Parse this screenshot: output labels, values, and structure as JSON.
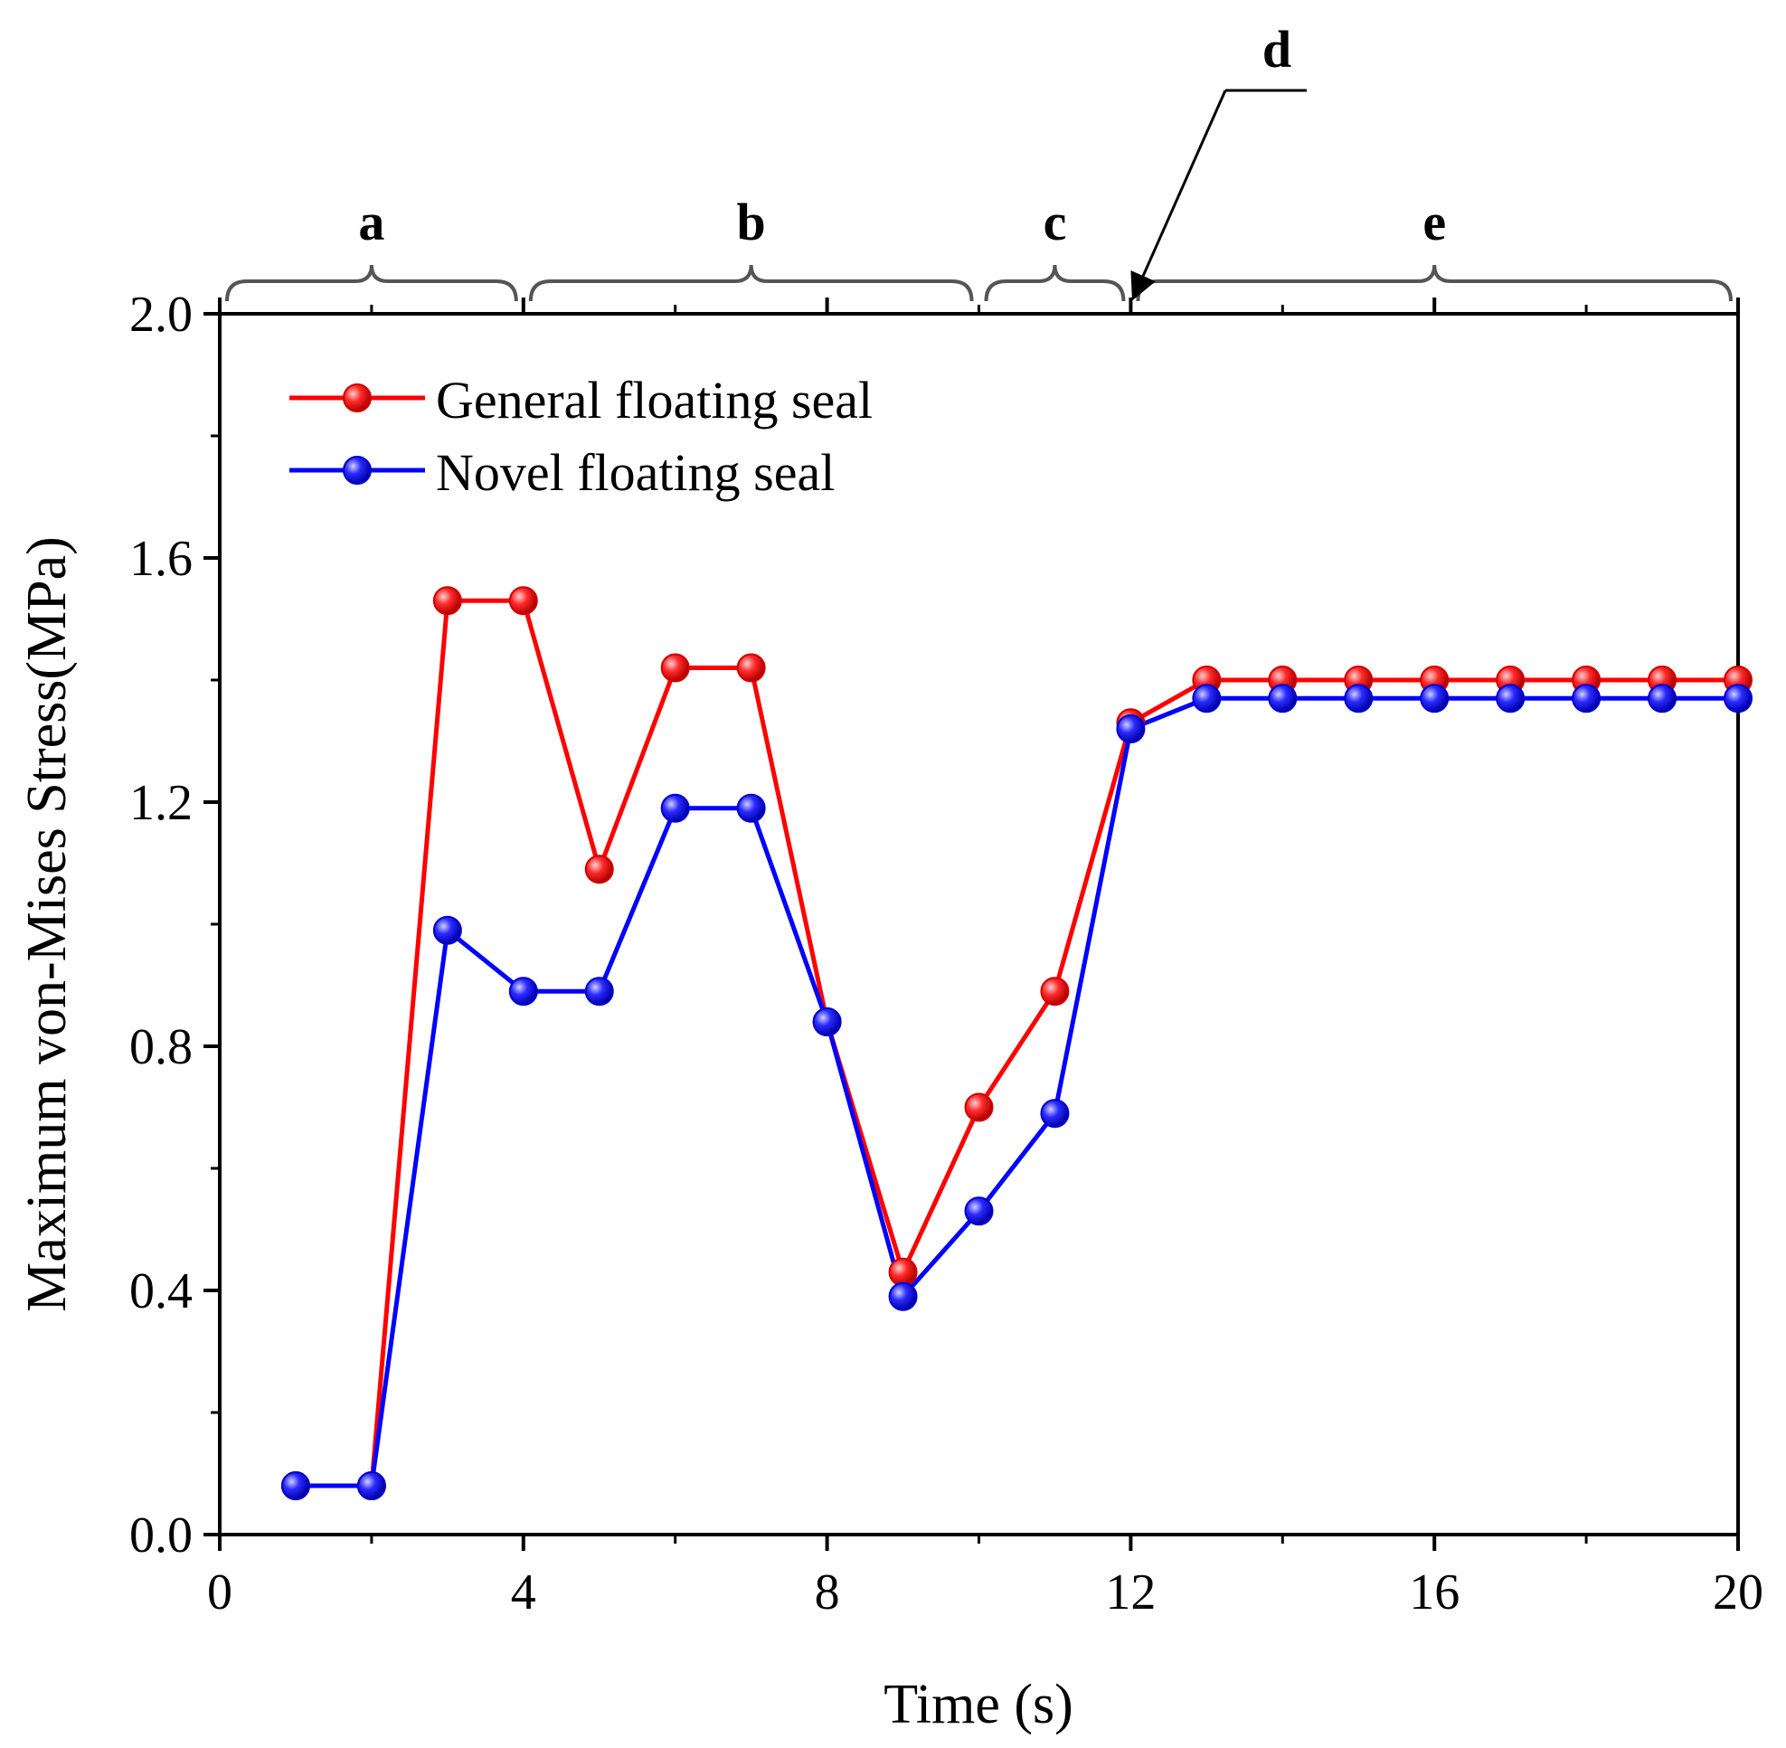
{
  "chart_data": {
    "type": "line",
    "title": "",
    "xlabel": "Time (s)",
    "ylabel": "Maximum von-Mises Stress(MPa)",
    "xlim": [
      0,
      20
    ],
    "ylim": [
      0,
      2.0
    ],
    "x_ticks": [
      0,
      4,
      8,
      12,
      16,
      20
    ],
    "x_tick_labels": [
      "0",
      "4",
      "8",
      "12",
      "16",
      "20"
    ],
    "y_ticks": [
      0,
      0.4,
      0.8,
      1.2,
      1.6,
      2.0
    ],
    "y_tick_labels": [
      "0.0",
      "0.4",
      "0.8",
      "1.2",
      "1.6",
      "2.0"
    ],
    "legend_position": "top-left",
    "grid": false,
    "series": [
      {
        "name": "General floating seal",
        "color": "#ff0000",
        "x": [
          1,
          2,
          3,
          4,
          5,
          6,
          7,
          8,
          9,
          10,
          11,
          12,
          13,
          14,
          15,
          16,
          17,
          18,
          19,
          20
        ],
        "values": [
          0.08,
          0.08,
          1.53,
          1.53,
          1.09,
          1.42,
          1.42,
          0.84,
          0.43,
          0.7,
          0.89,
          1.33,
          1.4,
          1.4,
          1.4,
          1.4,
          1.4,
          1.4,
          1.4,
          1.4
        ]
      },
      {
        "name": "Novel floating seal",
        "color": "#0000ff",
        "x": [
          1,
          2,
          3,
          4,
          5,
          6,
          7,
          8,
          9,
          10,
          11,
          12,
          13,
          14,
          15,
          16,
          17,
          18,
          19,
          20
        ],
        "values": [
          0.08,
          0.08,
          0.99,
          0.89,
          0.89,
          1.19,
          1.19,
          0.84,
          0.39,
          0.53,
          0.69,
          1.32,
          1.37,
          1.37,
          1.37,
          1.37,
          1.37,
          1.37,
          1.37,
          1.37
        ]
      }
    ],
    "phases": [
      {
        "label": "a",
        "start": 0,
        "end": 4
      },
      {
        "label": "b",
        "start": 4,
        "end": 10
      },
      {
        "label": "c",
        "start": 10,
        "end": 12
      },
      {
        "label": "e",
        "start": 12,
        "end": 20
      }
    ],
    "annotation": {
      "label": "d",
      "at_x": 12
    }
  }
}
